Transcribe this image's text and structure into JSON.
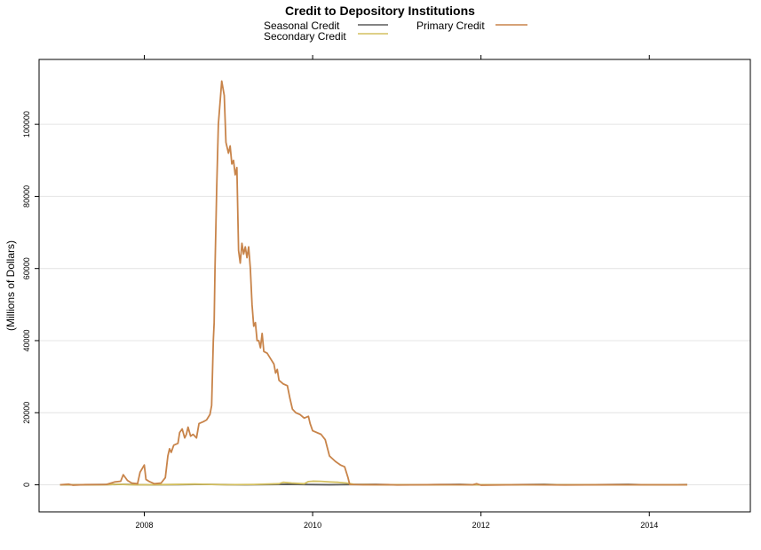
{
  "chart_data": {
    "type": "line",
    "title": "Credit to Depository Institutions",
    "xlabel": "",
    "ylabel": "(Millions of Dollars)",
    "xlim": [
      2006.75,
      2015.2
    ],
    "ylim": [
      -7500,
      118000
    ],
    "x_ticks": [
      2008,
      2010,
      2012,
      2014
    ],
    "x_tick_labels": [
      "2008",
      "2010",
      "2012",
      "2014"
    ],
    "y_ticks": [
      0,
      20000,
      40000,
      60000,
      80000,
      100000
    ],
    "y_tick_labels": [
      "0",
      "20000",
      "40000",
      "60000",
      "80000",
      "100000"
    ],
    "grid": "horizontal",
    "legend_position": "top-center",
    "series": [
      {
        "name": "Seasonal Credit",
        "color": "#5a5a5a",
        "points": [
          [
            2007.0,
            0
          ],
          [
            2007.3,
            20
          ],
          [
            2007.6,
            80
          ],
          [
            2007.75,
            120
          ],
          [
            2007.9,
            40
          ],
          [
            2008.1,
            10
          ],
          [
            2008.4,
            50
          ],
          [
            2008.7,
            120
          ],
          [
            2008.9,
            60
          ],
          [
            2009.2,
            10
          ],
          [
            2009.5,
            60
          ],
          [
            2009.75,
            140
          ],
          [
            2009.9,
            80
          ],
          [
            2010.2,
            20
          ],
          [
            2010.5,
            80
          ],
          [
            2010.75,
            120
          ],
          [
            2010.9,
            40
          ],
          [
            2011.2,
            10
          ],
          [
            2011.5,
            60
          ],
          [
            2011.75,
            120
          ],
          [
            2011.9,
            40
          ],
          [
            2012.2,
            10
          ],
          [
            2012.5,
            60
          ],
          [
            2012.75,
            120
          ],
          [
            2012.9,
            40
          ],
          [
            2013.2,
            10
          ],
          [
            2013.5,
            60
          ],
          [
            2013.75,
            120
          ],
          [
            2013.9,
            40
          ],
          [
            2014.2,
            10
          ],
          [
            2014.45,
            60
          ]
        ]
      },
      {
        "name": "Secondary Credit",
        "color": "#d4c060",
        "points": [
          [
            2007.0,
            0
          ],
          [
            2007.5,
            20
          ],
          [
            2007.7,
            150
          ],
          [
            2007.8,
            40
          ],
          [
            2008.0,
            10
          ],
          [
            2008.3,
            80
          ],
          [
            2008.6,
            200
          ],
          [
            2008.8,
            100
          ],
          [
            2009.0,
            30
          ],
          [
            2009.3,
            100
          ],
          [
            2009.6,
            300
          ],
          [
            2009.65,
            700
          ],
          [
            2009.75,
            500
          ],
          [
            2009.9,
            300
          ],
          [
            2009.95,
            900
          ],
          [
            2010.0,
            1000
          ],
          [
            2010.1,
            950
          ],
          [
            2010.2,
            800
          ],
          [
            2010.3,
            700
          ],
          [
            2010.4,
            500
          ],
          [
            2010.45,
            300
          ],
          [
            2010.5,
            100
          ],
          [
            2010.8,
            20
          ],
          [
            2011.2,
            10
          ],
          [
            2011.8,
            20
          ],
          [
            2012.5,
            5
          ],
          [
            2013.5,
            10
          ],
          [
            2014.45,
            5
          ]
        ]
      },
      {
        "name": "Primary Credit",
        "color": "#c8844a",
        "points": [
          [
            2007.0,
            0
          ],
          [
            2007.1,
            200
          ],
          [
            2007.15,
            -100
          ],
          [
            2007.3,
            50
          ],
          [
            2007.55,
            100
          ],
          [
            2007.65,
            800
          ],
          [
            2007.72,
            1000
          ],
          [
            2007.75,
            2800
          ],
          [
            2007.8,
            1200
          ],
          [
            2007.85,
            500
          ],
          [
            2007.92,
            300
          ],
          [
            2007.95,
            3500
          ],
          [
            2008.0,
            5500
          ],
          [
            2008.02,
            1500
          ],
          [
            2008.06,
            900
          ],
          [
            2008.12,
            300
          ],
          [
            2008.2,
            500
          ],
          [
            2008.25,
            2000
          ],
          [
            2008.28,
            8000
          ],
          [
            2008.3,
            10000
          ],
          [
            2008.32,
            9000
          ],
          [
            2008.35,
            11000
          ],
          [
            2008.4,
            11500
          ],
          [
            2008.42,
            14500
          ],
          [
            2008.45,
            15500
          ],
          [
            2008.48,
            13000
          ],
          [
            2008.5,
            14000
          ],
          [
            2008.52,
            16000
          ],
          [
            2008.55,
            13500
          ],
          [
            2008.58,
            14000
          ],
          [
            2008.62,
            13000
          ],
          [
            2008.65,
            17000
          ],
          [
            2008.7,
            17500
          ],
          [
            2008.74,
            18000
          ],
          [
            2008.78,
            19500
          ],
          [
            2008.8,
            22000
          ],
          [
            2008.82,
            40000
          ],
          [
            2008.83,
            45000
          ],
          [
            2008.84,
            60000
          ],
          [
            2008.86,
            82000
          ],
          [
            2008.88,
            100000
          ],
          [
            2008.92,
            112000
          ],
          [
            2008.95,
            108000
          ],
          [
            2008.97,
            95000
          ],
          [
            2009.0,
            92000
          ],
          [
            2009.02,
            94000
          ],
          [
            2009.04,
            89000
          ],
          [
            2009.06,
            90000
          ],
          [
            2009.08,
            86000
          ],
          [
            2009.1,
            88000
          ],
          [
            2009.12,
            65000
          ],
          [
            2009.14,
            61500
          ],
          [
            2009.16,
            67000
          ],
          [
            2009.18,
            64000
          ],
          [
            2009.2,
            66000
          ],
          [
            2009.22,
            63000
          ],
          [
            2009.24,
            66000
          ],
          [
            2009.26,
            60000
          ],
          [
            2009.28,
            50000
          ],
          [
            2009.3,
            44000
          ],
          [
            2009.32,
            45000
          ],
          [
            2009.34,
            40000
          ],
          [
            2009.36,
            40000
          ],
          [
            2009.38,
            38000
          ],
          [
            2009.4,
            42000
          ],
          [
            2009.42,
            37000
          ],
          [
            2009.46,
            36500
          ],
          [
            2009.5,
            35000
          ],
          [
            2009.54,
            33500
          ],
          [
            2009.56,
            31000
          ],
          [
            2009.58,
            32000
          ],
          [
            2009.6,
            29000
          ],
          [
            2009.65,
            28000
          ],
          [
            2009.7,
            27500
          ],
          [
            2009.73,
            24000
          ],
          [
            2009.76,
            21000
          ],
          [
            2009.8,
            20000
          ],
          [
            2009.85,
            19500
          ],
          [
            2009.9,
            18500
          ],
          [
            2009.95,
            19000
          ],
          [
            2009.97,
            17000
          ],
          [
            2010.0,
            15000
          ],
          [
            2010.1,
            14000
          ],
          [
            2010.15,
            12500
          ],
          [
            2010.2,
            8000
          ],
          [
            2010.27,
            6500
          ],
          [
            2010.33,
            5500
          ],
          [
            2010.38,
            5000
          ],
          [
            2010.42,
            2000
          ],
          [
            2010.44,
            100
          ],
          [
            2010.6,
            0
          ],
          [
            2010.9,
            50
          ],
          [
            2011.0,
            -50
          ],
          [
            2011.5,
            50
          ],
          [
            2011.9,
            0
          ],
          [
            2011.95,
            300
          ],
          [
            2012.0,
            -100
          ],
          [
            2012.5,
            30
          ],
          [
            2013.0,
            -50
          ],
          [
            2013.5,
            20
          ],
          [
            2014.0,
            0
          ],
          [
            2014.45,
            10
          ]
        ]
      }
    ]
  }
}
